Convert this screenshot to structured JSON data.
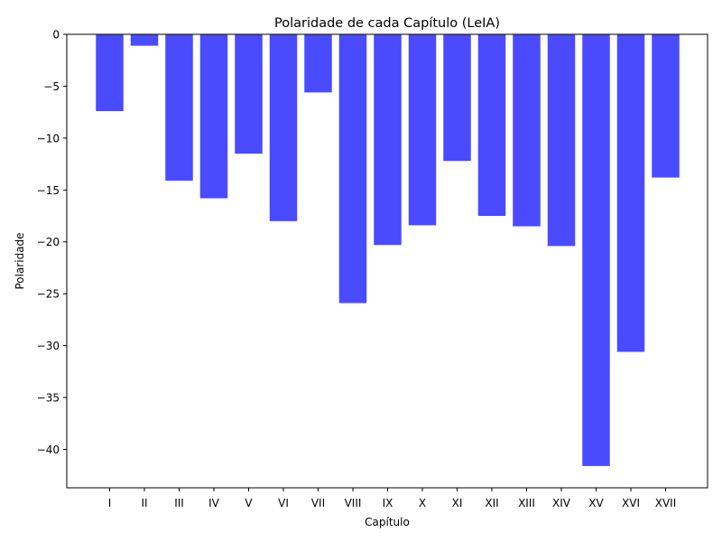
{
  "chart_data": {
    "type": "bar",
    "title": "Polaridade de cada Capítulo (LeIA)",
    "xlabel": "Capítulo",
    "ylabel": "Polaridade",
    "categories": [
      "I",
      "II",
      "III",
      "IV",
      "V",
      "VI",
      "VII",
      "VIII",
      "IX",
      "X",
      "XI",
      "XII",
      "XIII",
      "XIV",
      "XV",
      "XVI",
      "XVII"
    ],
    "values": [
      -7.4,
      -1.1,
      -14.1,
      -15.8,
      -11.5,
      -18.0,
      -5.6,
      -25.9,
      -20.3,
      -18.4,
      -12.2,
      -17.5,
      -18.5,
      -20.4,
      -41.6,
      -30.6,
      -13.8
    ],
    "ylim": [
      -43.7,
      0
    ],
    "yticks": [
      0,
      -5,
      -10,
      -15,
      -20,
      -25,
      -30,
      -35,
      -40
    ],
    "ytick_labels": [
      "0",
      "−5",
      "−10",
      "−15",
      "−20",
      "−25",
      "−30",
      "−35",
      "−40"
    ],
    "bar_color": "#4a4aff",
    "grid": false,
    "legend": "none"
  }
}
